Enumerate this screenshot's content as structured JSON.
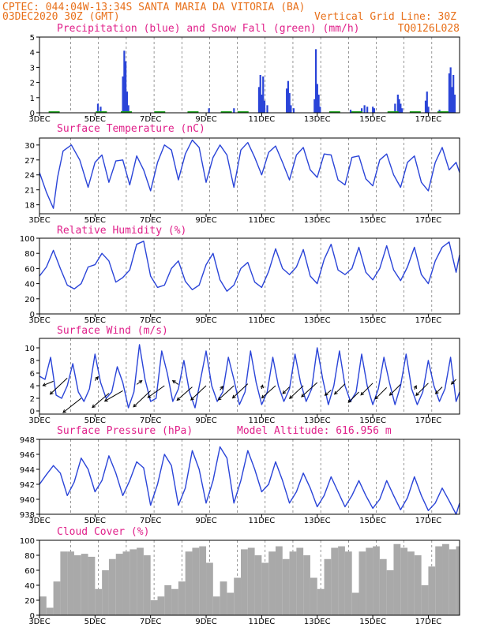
{
  "header": {
    "line1": "CPTEC:   044:04W-13:34S  SANTA MARIA DA VITORIA (BA)",
    "line2_left": "03DEC2020 30Z (GMT)",
    "line2_right": "Vertical Grid Line: 30Z",
    "code": "TQ0126L028"
  },
  "model_altitude": "Model Altitude: 616.956 m",
  "colors": {
    "header": "#e8701a",
    "title": "#e0208a",
    "line": "#2a44d8",
    "snow": "#1aa01a",
    "cloud": "#a9a9a9"
  },
  "x_tick_labels": [
    "3DEC",
    "5DEC",
    "7DEC",
    "9DEC",
    "11DEC",
    "13DEC",
    "15DEC",
    "17DEC"
  ],
  "x_tick_days": [
    3,
    5,
    7,
    9,
    11,
    13,
    15,
    17
  ],
  "x_range_days": [
    3,
    18.125
  ],
  "chart_data": [
    {
      "type": "bar",
      "title": "Precipitation (blue) and Snow Fall (green) (mm/h)",
      "y_ticks": [
        0,
        1,
        2,
        3,
        4,
        5
      ],
      "ylim": [
        0,
        5
      ],
      "series": [
        {
          "name": "Precipitation (blue)",
          "x": [
            5.1,
            5.2,
            6.0,
            6.05,
            6.1,
            6.15,
            6.2,
            9.1,
            10.0,
            10.9,
            10.95,
            11.0,
            11.05,
            11.1,
            11.2,
            11.9,
            11.95,
            12.0,
            12.05,
            12.15,
            12.9,
            12.95,
            13.0,
            13.05,
            13.1,
            14.2,
            14.6,
            14.7,
            14.8,
            15.0,
            15.05,
            15.8,
            15.9,
            15.95,
            16.0,
            16.05,
            16.9,
            16.95,
            17.0,
            17.4,
            17.75,
            17.8,
            17.85,
            17.9,
            17.95
          ],
          "values": [
            0.6,
            0.4,
            2.4,
            4.1,
            3.4,
            1.4,
            0.5,
            0.3,
            0.3,
            1.7,
            2.5,
            1.2,
            2.4,
            0.8,
            0.5,
            1.6,
            2.1,
            1.3,
            0.5,
            0.3,
            0.9,
            4.2,
            1.9,
            1.2,
            0.4,
            0.2,
            0.3,
            0.5,
            0.4,
            0.4,
            0.3,
            0.6,
            1.2,
            0.9,
            0.6,
            0.3,
            0.8,
            1.4,
            0.4,
            0.2,
            2.6,
            3.0,
            1.7,
            2.5,
            1.2
          ]
        },
        {
          "name": "Snow Fall (green)",
          "x": [
            3.5,
            5.2,
            6.1,
            7.3,
            8.5,
            9.7,
            10.3,
            13.6,
            14.4,
            15.7,
            16.5,
            17.5
          ],
          "values": [
            0.1,
            0.1,
            0.1,
            0.1,
            0.1,
            0.1,
            0.1,
            0.1,
            0.1,
            0.1,
            0.1,
            0.1
          ]
        }
      ]
    },
    {
      "type": "line",
      "title": "Surface Temperature (nC)",
      "y_ticks": [
        18,
        21,
        24,
        27,
        30
      ],
      "ylim": [
        16.2,
        31.4
      ],
      "x": [
        3.0,
        3.25,
        3.5,
        3.65,
        3.85,
        4.15,
        4.45,
        4.75,
        5.0,
        5.25,
        5.5,
        5.75,
        6.0,
        6.25,
        6.5,
        6.75,
        7.0,
        7.25,
        7.5,
        7.75,
        8.0,
        8.25,
        8.5,
        8.75,
        9.0,
        9.25,
        9.5,
        9.75,
        10.0,
        10.25,
        10.5,
        10.75,
        11.0,
        11.25,
        11.5,
        11.75,
        12.0,
        12.25,
        12.5,
        12.75,
        13.0,
        13.25,
        13.5,
        13.75,
        14.0,
        14.25,
        14.5,
        14.75,
        15.0,
        15.25,
        15.5,
        15.75,
        16.0,
        16.25,
        16.5,
        16.75,
        17.0,
        17.25,
        17.5,
        17.75,
        18.0,
        18.125
      ],
      "series": [
        {
          "name": "Surface Temperature",
          "values": [
            24.5,
            20.5,
            17.3,
            23.5,
            28.8,
            30.0,
            27.0,
            21.5,
            26.5,
            28.0,
            22.5,
            26.8,
            27.0,
            22.0,
            27.8,
            25.0,
            20.8,
            26.5,
            30.0,
            29.0,
            23.0,
            28.2,
            31.0,
            29.5,
            22.5,
            27.5,
            30.0,
            28.0,
            21.5,
            29.0,
            30.5,
            27.5,
            24.0,
            28.5,
            29.8,
            26.5,
            23.0,
            28.0,
            29.5,
            25.0,
            23.5,
            28.2,
            28.0,
            23.0,
            22.0,
            27.5,
            27.8,
            23.2,
            21.8,
            27.0,
            28.2,
            24.0,
            21.5,
            26.5,
            27.8,
            22.5,
            20.8,
            26.5,
            29.5,
            25.0,
            26.5,
            24.5
          ]
        }
      ]
    },
    {
      "type": "line",
      "title": "Relative Humidity (%)",
      "y_ticks": [
        0,
        20,
        40,
        60,
        80,
        100
      ],
      "ylim": [
        0,
        100
      ],
      "x": [
        3.0,
        3.25,
        3.5,
        3.75,
        4.0,
        4.25,
        4.5,
        4.75,
        5.0,
        5.25,
        5.5,
        5.75,
        6.0,
        6.25,
        6.5,
        6.75,
        7.0,
        7.25,
        7.5,
        7.75,
        8.0,
        8.25,
        8.5,
        8.75,
        9.0,
        9.25,
        9.5,
        9.75,
        10.0,
        10.25,
        10.5,
        10.75,
        11.0,
        11.25,
        11.5,
        11.75,
        12.0,
        12.25,
        12.5,
        12.75,
        13.0,
        13.25,
        13.5,
        13.75,
        14.0,
        14.25,
        14.5,
        14.75,
        15.0,
        15.25,
        15.5,
        15.75,
        16.0,
        16.25,
        16.5,
        16.75,
        17.0,
        17.25,
        17.5,
        17.75,
        18.0,
        18.125
      ],
      "series": [
        {
          "name": "Relative Humidity",
          "values": [
            50,
            62,
            84,
            60,
            38,
            33,
            40,
            62,
            65,
            80,
            70,
            42,
            48,
            58,
            92,
            96,
            50,
            35,
            38,
            60,
            70,
            43,
            32,
            38,
            65,
            80,
            45,
            30,
            38,
            60,
            68,
            42,
            35,
            56,
            86,
            60,
            52,
            62,
            85,
            50,
            40,
            72,
            92,
            58,
            52,
            60,
            88,
            55,
            45,
            60,
            90,
            58,
            44,
            62,
            88,
            52,
            40,
            70,
            88,
            95,
            55,
            78
          ]
        }
      ]
    },
    {
      "type": "line",
      "title": "Surface Wind (m/s)",
      "y_ticks": [
        0,
        2,
        4,
        6,
        8,
        10
      ],
      "ylim": [
        -0.5,
        11.5
      ],
      "x": [
        3.0,
        3.2,
        3.4,
        3.6,
        3.8,
        4.0,
        4.2,
        4.4,
        4.6,
        4.8,
        5.0,
        5.2,
        5.4,
        5.6,
        5.8,
        6.0,
        6.2,
        6.4,
        6.6,
        6.8,
        7.0,
        7.2,
        7.4,
        7.6,
        7.8,
        8.0,
        8.2,
        8.4,
        8.6,
        8.8,
        9.0,
        9.2,
        9.4,
        9.6,
        9.8,
        10.0,
        10.2,
        10.4,
        10.6,
        10.8,
        11.0,
        11.2,
        11.4,
        11.6,
        11.8,
        12.0,
        12.2,
        12.4,
        12.6,
        12.8,
        13.0,
        13.2,
        13.4,
        13.6,
        13.8,
        14.0,
        14.2,
        14.4,
        14.6,
        14.8,
        15.0,
        15.2,
        15.4,
        15.6,
        15.8,
        16.0,
        16.2,
        16.4,
        16.6,
        16.8,
        17.0,
        17.2,
        17.4,
        17.6,
        17.8,
        18.0,
        18.125
      ],
      "series": [
        {
          "name": "Surface Wind",
          "values": [
            5.5,
            5.0,
            8.5,
            2.5,
            2.0,
            4.0,
            7.5,
            3.0,
            1.5,
            3.5,
            9.0,
            4.5,
            2.0,
            3.0,
            7.0,
            4.5,
            0.5,
            3.0,
            10.5,
            5.0,
            1.5,
            2.0,
            9.5,
            6.0,
            1.5,
            3.5,
            8.0,
            3.0,
            0.5,
            5.0,
            9.5,
            4.0,
            1.5,
            3.0,
            8.5,
            5.0,
            1.0,
            3.0,
            9.5,
            4.5,
            1.0,
            3.0,
            8.5,
            4.0,
            1.5,
            3.5,
            9.0,
            4.5,
            1.5,
            3.5,
            10.0,
            5.0,
            1.0,
            4.0,
            9.5,
            4.0,
            1.5,
            3.0,
            9.0,
            4.0,
            1.0,
            3.5,
            8.5,
            4.5,
            1.0,
            4.0,
            9.0,
            3.5,
            1.0,
            3.0,
            8.0,
            4.0,
            1.5,
            3.5,
            8.5,
            1.5,
            3.0
          ]
        }
      ],
      "wind_arrows": {
        "x": [
          3.5,
          4.0,
          4.5,
          5.0,
          5.5,
          6.0,
          6.5,
          7.0,
          7.5,
          8.0,
          8.5,
          9.0,
          9.5,
          10.0,
          10.5,
          11.0,
          11.5,
          12.0,
          12.5,
          13.0,
          13.5,
          14.0,
          14.5,
          15.0,
          15.5,
          16.0,
          16.5,
          17.0,
          17.5,
          18.0
        ],
        "y": [
          4.7,
          5.2,
          2.0,
          4.8,
          2.8,
          3.2,
          4.2,
          3.2,
          4.0,
          4.2,
          3.8,
          4.0,
          3.3,
          4.0,
          4.3,
          3.5,
          4.0,
          3.8,
          4.0,
          4.5,
          3.3,
          4.3,
          3.0,
          4.4,
          3.7,
          4.2,
          3.4,
          4.4,
          3.8,
          5.0
        ],
        "u": [
          -2.2,
          -3.6,
          -3.8,
          0.6,
          -3.5,
          -3.8,
          1.1,
          -3.6,
          -3.5,
          -1.2,
          -3.2,
          -3.2,
          0.6,
          -3.3,
          -3.2,
          0.2,
          -2.9,
          -1.4,
          -2.9,
          -3.3,
          -1.3,
          -2.2,
          -2.2,
          -2.5,
          -2.4,
          -2.3,
          0.4,
          -2.6,
          -1.4,
          -1.0
        ],
        "v": [
          -0.9,
          -3.4,
          -3.0,
          0.8,
          -3.0,
          -2.2,
          0.8,
          -3.4,
          -2.5,
          0.8,
          -2.8,
          -3.0,
          0.8,
          -3.0,
          -3.0,
          0.8,
          -2.6,
          -1.4,
          -2.7,
          -3.0,
          -1.1,
          -2.2,
          -2.2,
          -2.5,
          -2.4,
          -2.3,
          0.8,
          -2.6,
          -1.4,
          -1.0
        ]
      }
    },
    {
      "type": "line",
      "title": "Surface Pressure (hPa)",
      "y_ticks": [
        938,
        940,
        942,
        944,
        946,
        948
      ],
      "ylim": [
        938,
        948
      ],
      "x": [
        3.0,
        3.25,
        3.5,
        3.75,
        4.0,
        4.25,
        4.5,
        4.75,
        5.0,
        5.25,
        5.5,
        5.75,
        6.0,
        6.25,
        6.5,
        6.75,
        7.0,
        7.25,
        7.5,
        7.75,
        8.0,
        8.25,
        8.5,
        8.75,
        9.0,
        9.25,
        9.5,
        9.75,
        10.0,
        10.25,
        10.5,
        10.75,
        11.0,
        11.25,
        11.5,
        11.75,
        12.0,
        12.25,
        12.5,
        12.75,
        13.0,
        13.25,
        13.5,
        13.75,
        14.0,
        14.25,
        14.5,
        14.75,
        15.0,
        15.25,
        15.5,
        15.75,
        16.0,
        16.25,
        16.5,
        16.75,
        17.0,
        17.25,
        17.5,
        17.75,
        18.0,
        18.125
      ],
      "series": [
        {
          "name": "Surface Pressure",
          "values": [
            942.0,
            943.3,
            944.5,
            943.5,
            940.5,
            942.3,
            945.5,
            944.0,
            941.0,
            942.5,
            945.8,
            943.5,
            940.5,
            942.5,
            945.0,
            944.2,
            939.2,
            942.0,
            946.0,
            944.5,
            939.2,
            941.5,
            946.5,
            944.0,
            939.5,
            942.5,
            947.0,
            945.5,
            939.5,
            942.5,
            946.5,
            944.0,
            941.0,
            942.0,
            945.0,
            942.5,
            939.5,
            941.0,
            943.5,
            941.5,
            939.0,
            940.5,
            943.0,
            941.0,
            939.0,
            940.5,
            942.5,
            940.5,
            938.8,
            940.0,
            942.5,
            940.5,
            938.6,
            940.2,
            943.0,
            940.5,
            938.5,
            939.5,
            941.5,
            939.8,
            938.0,
            939.5
          ]
        }
      ]
    },
    {
      "type": "bar",
      "title": "Cloud Cover (%)",
      "y_ticks": [
        0,
        20,
        40,
        60,
        80,
        100
      ],
      "ylim": [
        0,
        100
      ],
      "x": [
        3.0,
        3.25,
        3.5,
        3.75,
        4.0,
        4.25,
        4.5,
        4.75,
        5.0,
        5.25,
        5.5,
        5.75,
        6.0,
        6.25,
        6.5,
        6.75,
        7.0,
        7.25,
        7.5,
        7.75,
        8.0,
        8.25,
        8.5,
        8.75,
        9.0,
        9.25,
        9.5,
        9.75,
        10.0,
        10.25,
        10.5,
        10.75,
        11.0,
        11.25,
        11.5,
        11.75,
        12.0,
        12.25,
        12.5,
        12.75,
        13.0,
        13.25,
        13.5,
        13.75,
        14.0,
        14.25,
        14.5,
        14.75,
        15.0,
        15.25,
        15.5,
        15.75,
        16.0,
        16.25,
        16.5,
        16.75,
        17.0,
        17.25,
        17.5,
        17.75,
        18.0
      ],
      "series": [
        {
          "name": "Cloud Cover",
          "values": [
            25,
            10,
            45,
            85,
            85,
            80,
            82,
            78,
            35,
            60,
            75,
            82,
            85,
            88,
            90,
            80,
            20,
            25,
            40,
            35,
            45,
            85,
            90,
            92,
            70,
            25,
            45,
            30,
            50,
            88,
            90,
            80,
            70,
            85,
            92,
            75,
            85,
            90,
            80,
            50,
            35,
            75,
            90,
            92,
            85,
            30,
            85,
            90,
            92,
            75,
            60,
            95,
            90,
            85,
            80,
            40,
            65,
            92,
            95,
            88,
            92
          ]
        }
      ]
    }
  ]
}
